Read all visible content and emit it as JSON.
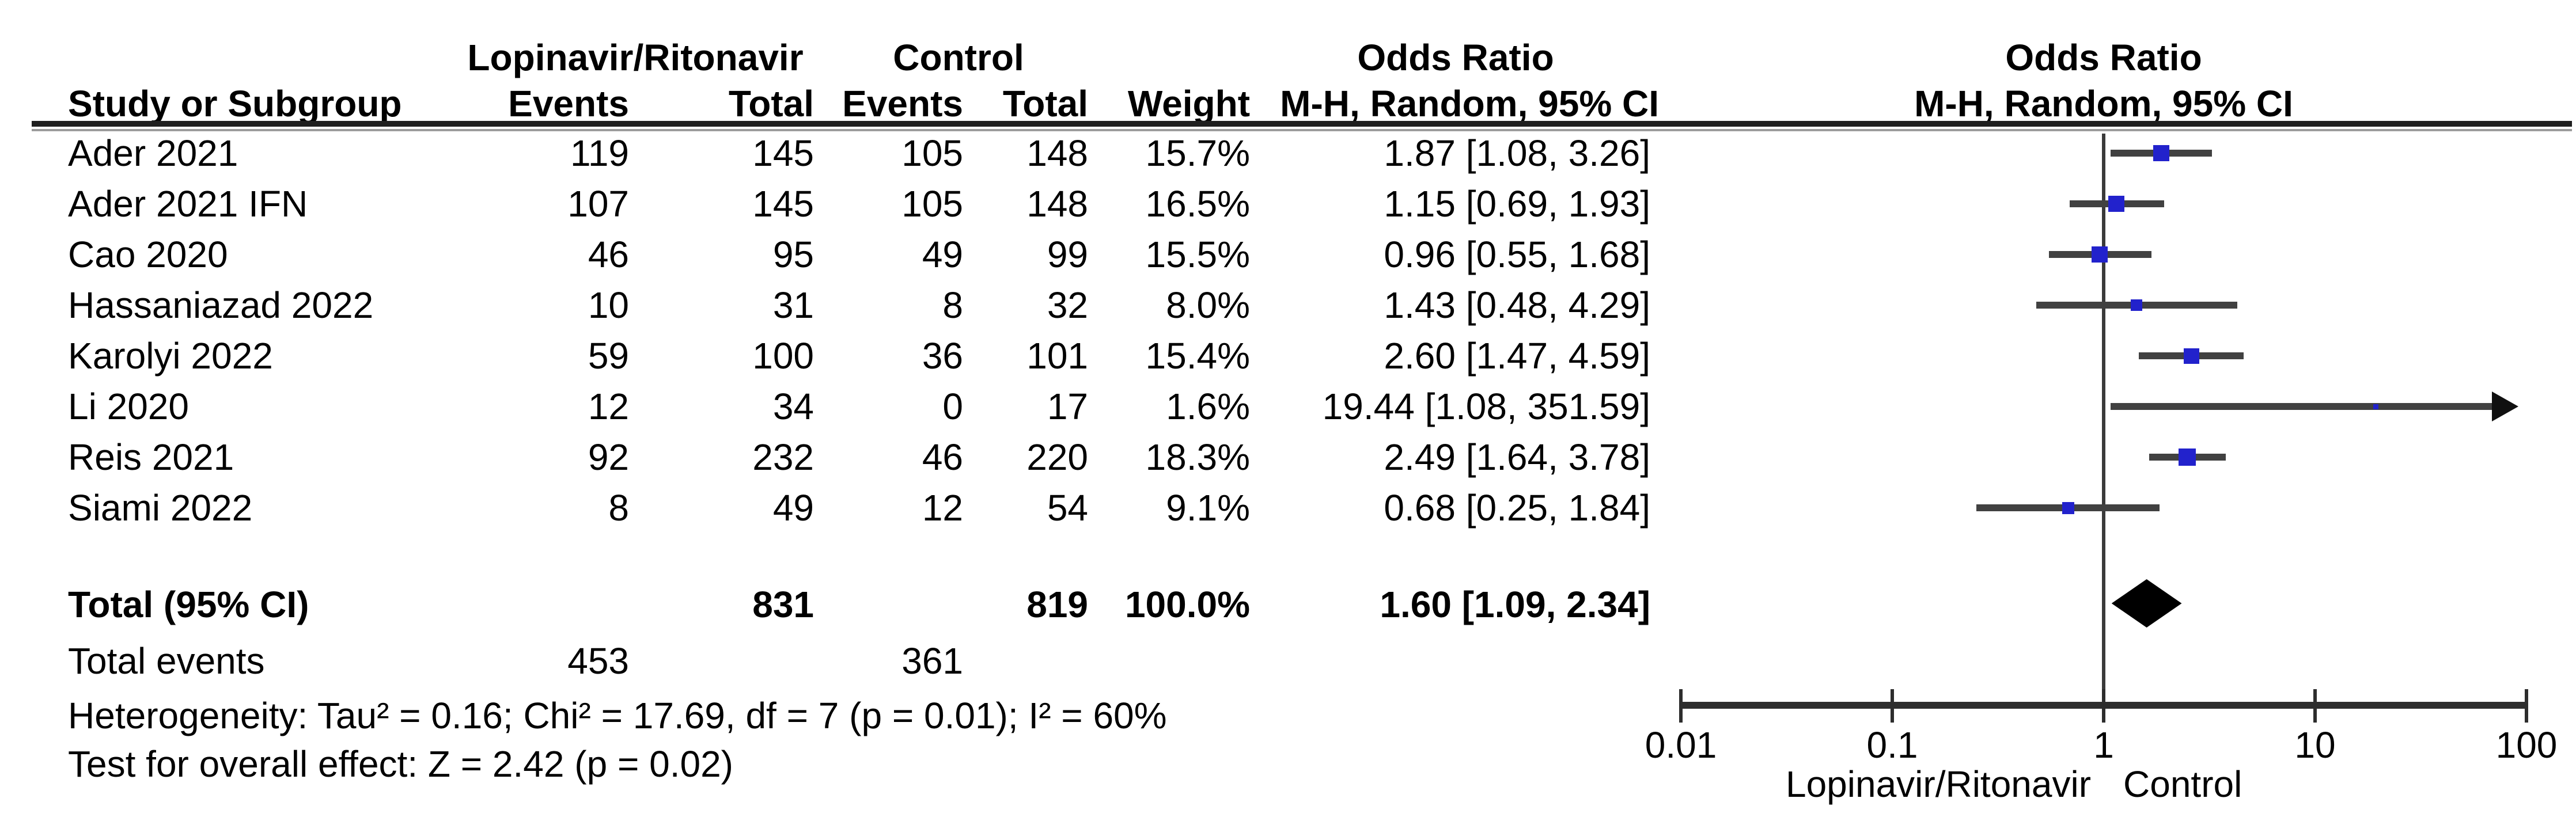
{
  "header": {
    "col_study": "Study or Subgroup",
    "group_treatment": "Lopinavir/Ritonavir",
    "group_control": "Control",
    "col_events": "Events",
    "col_total": "Total",
    "col_events2": "Events",
    "col_total2": "Total",
    "col_weight": "Weight",
    "or_col_title": "Odds Ratio",
    "or_col_subtitle": "M-H, Random, 95% CI",
    "plot_title": "Odds Ratio",
    "plot_subtitle": "M-H, Random, 95% CI"
  },
  "chart_data": {
    "type": "scatter",
    "subtype": "forest-plot",
    "x_scale": "log10",
    "x_range": [
      0.01,
      100
    ],
    "x_ticks": [
      "0.01",
      "0.1",
      "1",
      "10",
      "100"
    ],
    "x_tick_values": [
      0.01,
      0.1,
      1,
      10,
      100
    ],
    "null_line": 1,
    "favours_left": "Lopinavir/Ritonavir",
    "favours_right": "Control",
    "marker_color": "#2222CC",
    "ci_color": "#414141",
    "diamond_color": "#000000",
    "studies": [
      {
        "study": "Ader 2021",
        "events1": "119",
        "total1": "145",
        "events2": "105",
        "total2": "148",
        "weight": "15.7%",
        "weight_pct": 15.7,
        "or_text": "1.87 [1.08, 3.26]",
        "or": 1.87,
        "ci_low": 1.08,
        "ci_high": 3.26
      },
      {
        "study": "Ader 2021 IFN",
        "events1": "107",
        "total1": "145",
        "events2": "105",
        "total2": "148",
        "weight": "16.5%",
        "weight_pct": 16.5,
        "or_text": "1.15 [0.69, 1.93]",
        "or": 1.15,
        "ci_low": 0.69,
        "ci_high": 1.93
      },
      {
        "study": "Cao 2020",
        "events1": "46",
        "total1": "95",
        "events2": "49",
        "total2": "99",
        "weight": "15.5%",
        "weight_pct": 15.5,
        "or_text": "0.96 [0.55, 1.68]",
        "or": 0.96,
        "ci_low": 0.55,
        "ci_high": 1.68
      },
      {
        "study": "Hassaniazad 2022",
        "events1": "10",
        "total1": "31",
        "events2": "8",
        "total2": "32",
        "weight": "8.0%",
        "weight_pct": 8.0,
        "or_text": "1.43 [0.48, 4.29]",
        "or": 1.43,
        "ci_low": 0.48,
        "ci_high": 4.29
      },
      {
        "study": "Karolyi 2022",
        "events1": "59",
        "total1": "100",
        "events2": "36",
        "total2": "101",
        "weight": "15.4%",
        "weight_pct": 15.4,
        "or_text": "2.60 [1.47, 4.59]",
        "or": 2.6,
        "ci_low": 1.47,
        "ci_high": 4.59
      },
      {
        "study": "Li 2020",
        "events1": "12",
        "total1": "34",
        "events2": "0",
        "total2": "17",
        "weight": "1.6%",
        "weight_pct": 1.6,
        "or_text": "19.44 [1.08, 351.59]",
        "or": 19.44,
        "ci_low": 1.08,
        "ci_high": 351.59
      },
      {
        "study": "Reis 2021",
        "events1": "92",
        "total1": "232",
        "events2": "46",
        "total2": "220",
        "weight": "18.3%",
        "weight_pct": 18.3,
        "or_text": "2.49 [1.64, 3.78]",
        "or": 2.49,
        "ci_low": 1.64,
        "ci_high": 3.78
      },
      {
        "study": "Siami 2022",
        "events1": "8",
        "total1": "49",
        "events2": "12",
        "total2": "54",
        "weight": "9.1%",
        "weight_pct": 9.1,
        "or_text": "0.68 [0.25, 1.84]",
        "or": 0.68,
        "ci_low": 0.25,
        "ci_high": 1.84
      }
    ],
    "total": {
      "label": "Total (95% CI)",
      "total1": "831",
      "total2": "819",
      "weight": "100.0%",
      "or_text": "1.60 [1.09, 2.34]",
      "or": 1.6,
      "ci_low": 1.09,
      "ci_high": 2.34
    }
  },
  "footer": {
    "total_events_label": "Total events",
    "total_events_treatment": "453",
    "total_events_control": "361",
    "heterogeneity": "Heterogeneity: Tau² = 0.16; Chi² = 17.69, df = 7 (p = 0.01); I² = 60%",
    "overall_effect": "Test for overall effect: Z = 2.42 (p = 0.02)"
  }
}
